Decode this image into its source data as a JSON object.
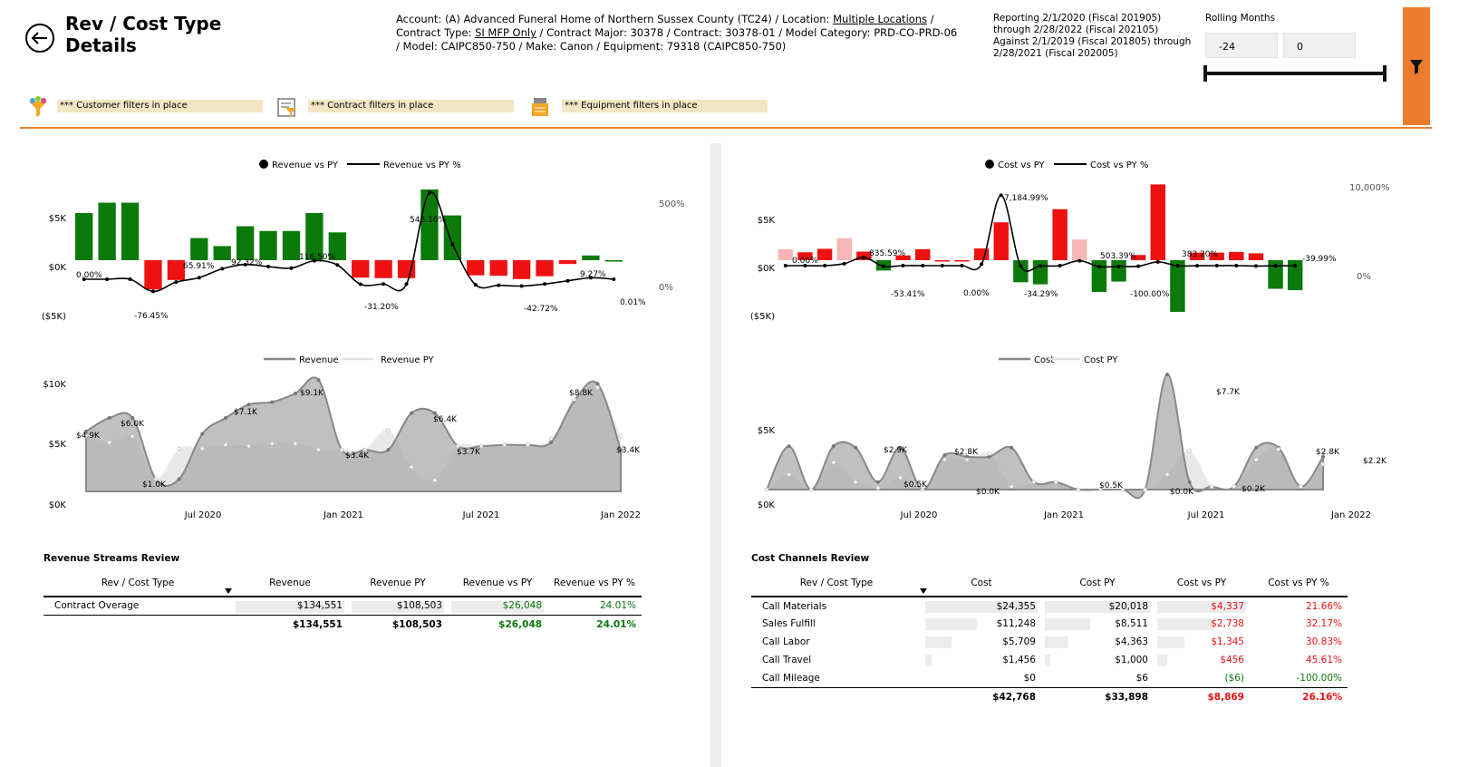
{
  "header": {
    "title_line1": "Rev / Cost Type",
    "title_line2": "Details",
    "context": {
      "account_prefix": "Account: (A) Advanced Funeral Home of Northern Sussex County (TC24) / Location: ",
      "location": "Multiple Locations",
      "line1_suffix": " /",
      "contract_type_prefix": "Contract Type: ",
      "contract_type": "SI MFP Only",
      "line2_rest": " /  Contract Major:  30378  /  Contract: 30378-01 / Model Category: PRD-CO-PRD-06",
      "line3": "/  Model: CAIPC850-750 / Make: Canon  / Equipment:  79318 (CAIPC850-750)"
    },
    "reporting": {
      "line1": "Reporting 2/1/2020 (Fiscal 201905)",
      "line2": "through 2/28/2022 (Fiscal 202105)",
      "line3": "Against 2/1/2019 (Fiscal 201805) through",
      "line4": "2/28/2021 (Fiscal 202005)"
    },
    "rolling_months": {
      "label": "Rolling Months",
      "start": "-24",
      "end": "0"
    }
  },
  "filters": {
    "customer": "*** Customer filters in place",
    "contract": "*** Contract filters in place",
    "equipment": "*** Equipment filters in place"
  },
  "colors": {
    "accent": "#ec7c2c",
    "positive": "#0b7a0b",
    "negative": "#ee1111",
    "neg_light": "#f6b6b6",
    "area_current": "#b5b5b5",
    "area_py": "#e6e6e6"
  },
  "charts": {
    "revenue_vs_py": {
      "legend": [
        "Revenue vs PY",
        "Revenue vs PY %"
      ],
      "y_ticks": [
        "$5K",
        "$0K",
        "($5K)"
      ],
      "y2_ticks": [
        "500%",
        "0%"
      ],
      "pct_labels": [
        "0.00%",
        "-76.45%",
        "65.91%",
        "92.32%",
        "116.50%",
        "-31.20%",
        "546.16%",
        "-42.72%",
        "9.27%",
        "0.01%"
      ]
    },
    "revenue": {
      "legend": [
        "Revenue",
        "Revenue PY"
      ],
      "y_ticks": [
        "$10K",
        "$5K",
        "$0K"
      ],
      "x_ticks": [
        "Jul 2020",
        "Jan 2021",
        "Jul 2021",
        "Jan 2022"
      ],
      "value_labels": [
        "$4.9K",
        "$6.0K",
        "$1.0K",
        "$7.1K",
        "$9.1K",
        "$3.4K",
        "$6.4K",
        "$3.7K",
        "$8.8K",
        "$3.4K"
      ]
    },
    "cost_vs_py": {
      "legend": [
        "Cost vs PY",
        "Cost vs PY %"
      ],
      "y_ticks": [
        "$5K",
        "$0K",
        "($5K)"
      ],
      "y2_ticks": [
        "10,000%",
        "0%"
      ],
      "pct_labels": [
        "7,184.99%",
        "0.00%",
        "835.59%",
        "-53.41%",
        "0.00%",
        "-34.29%",
        "503.39%",
        "-100.00%",
        "383.20%",
        "-39.99%"
      ]
    },
    "cost": {
      "legend": [
        "Cost",
        "Cost PY"
      ],
      "y_ticks": [
        "$5K",
        "$0K"
      ],
      "x_ticks": [
        "Jul 2020",
        "Jan 2021",
        "Jul 2021",
        "Jan 2022"
      ],
      "value_labels": [
        "$2.9K",
        "$2.8K",
        "$0.5K",
        "$0.0K",
        "$0.5K",
        "$7.7K",
        "$0.0K",
        "$0.2K",
        "$2.8K",
        "$2.2K"
      ]
    }
  },
  "chart_data": [
    {
      "type": "bar",
      "title": "",
      "series": [
        {
          "name": "Revenue vs PY",
          "values": [
            1000,
            1220,
            1220,
            -620,
            -420,
            470,
            300,
            720,
            620,
            620,
            1000,
            590,
            -370,
            -380,
            -380,
            1500,
            950,
            -320,
            -330,
            -400,
            -340,
            -80,
            100,
            0
          ]
        },
        {
          "name": "Revenue vs PY %",
          "values": [
            0.0,
            0.0,
            0.0,
            -76.45,
            -18,
            10,
            65.91,
            92.32,
            80,
            70,
            116.5,
            90,
            -31.2,
            -30,
            -30,
            546.16,
            220,
            -35,
            -38,
            -42.72,
            -30,
            -10,
            9.27,
            0.01
          ]
        }
      ],
      "ylabel": "",
      "ylim": [
        -5000,
        5000
      ]
    },
    {
      "type": "area",
      "title": "",
      "x_ticks": [
        "Jul 2020",
        "Jan 2021",
        "Jul 2021",
        "Jan 2022"
      ],
      "series": [
        {
          "name": "Revenue",
          "values": [
            4900,
            6000,
            6000,
            1000,
            1000,
            4700,
            6000,
            7100,
            7300,
            8000,
            9100,
            3400,
            3400,
            3400,
            6400,
            6400,
            3700,
            3700,
            3800,
            3800,
            4000,
            7400,
            8800,
            3400
          ]
        },
        {
          "name": "Revenue PY",
          "values": [
            4500,
            4000,
            4500,
            1000,
            3500,
            3500,
            3800,
            3700,
            3900,
            3900,
            3400,
            3400,
            3400,
            5000,
            2000,
            900,
            3700,
            3700,
            3800,
            3800,
            4300,
            7500,
            8500,
            4500
          ]
        }
      ],
      "ylim": [
        0,
        10000
      ]
    },
    {
      "type": "bar",
      "title": "",
      "series": [
        {
          "name": "Cost vs PY",
          "values": [
            320,
            230,
            330,
            640,
            250,
            -300,
            140,
            320,
            0,
            0,
            340,
            1100,
            -640,
            -700,
            1480,
            600,
            -920,
            -620,
            150,
            2200,
            -1500,
            220,
            220,
            240,
            200,
            -830,
            -870
          ]
        },
        {
          "name": "Cost vs PY %",
          "values": [
            0.0,
            0.0,
            0.0,
            200,
            835.59,
            -53.41,
            0.0,
            0.0,
            0.0,
            0.0,
            150,
            7184.99,
            -34.29,
            -30,
            0,
            503.39,
            -100.0,
            -80,
            -60,
            383.2,
            -20,
            -10,
            0,
            0,
            -39.99,
            -20,
            -10
          ]
        }
      ],
      "ylim": [
        -5000,
        5000
      ],
      "y2lim": [
        0,
        10000
      ]
    },
    {
      "type": "area",
      "title": "",
      "x_ticks": [
        "Jul 2020",
        "Jan 2021",
        "Jul 2021",
        "Jan 2022"
      ],
      "series": [
        {
          "name": "Cost",
          "values": [
            0,
            2900,
            0,
            2900,
            2800,
            500,
            2800,
            0,
            2300,
            2200,
            2200,
            2800,
            500,
            500,
            0,
            0,
            0,
            0,
            7700,
            500,
            200,
            200,
            2800,
            2800,
            200,
            2200
          ]
        },
        {
          "name": "Cost PY",
          "values": [
            0,
            1000,
            0,
            1800,
            500,
            100,
            800,
            0,
            2000,
            2000,
            2400,
            200,
            500,
            500,
            0,
            0,
            0,
            0,
            1000,
            2600,
            200,
            200,
            2000,
            2700,
            200,
            1700
          ]
        }
      ],
      "ylim": [
        0,
        9000
      ]
    }
  ],
  "revenue_table": {
    "title": "Revenue Streams Review",
    "columns": [
      "Rev / Cost Type",
      "Revenue",
      "Revenue PY",
      "Revenue vs PY",
      "Revenue vs PY %"
    ],
    "rows": [
      {
        "type": "Contract Overage",
        "value": "$134,551",
        "py": "$108,503",
        "vs": "$26,048",
        "pct": "24.01%",
        "sign": "pos",
        "bar": 1.0,
        "bar_py": 1.0,
        "bar_vs": 1.0
      }
    ],
    "total": {
      "value": "$134,551",
      "py": "$108,503",
      "vs": "$26,048",
      "pct": "24.01%",
      "sign": "pos"
    }
  },
  "cost_table": {
    "title": "Cost Channels Review",
    "columns": [
      "Rev / Cost Type",
      "Cost",
      "Cost PY",
      "Cost vs PY",
      "Cost vs PY %"
    ],
    "rows": [
      {
        "type": "Call Materials",
        "value": "$24,355",
        "py": "$20,018",
        "vs": "$4,337",
        "pct": "21.66%",
        "sign": "neg",
        "bar": 1.0,
        "bar_py": 1.0,
        "bar_vs": 1.0
      },
      {
        "type": "Sales Fulfill",
        "value": "$11,248",
        "py": "$8,511",
        "vs": "$2,738",
        "pct": "32.17%",
        "sign": "neg",
        "bar": 0.46,
        "bar_py": 0.43,
        "bar_vs": 0.63
      },
      {
        "type": "Call Labor",
        "value": "$5,709",
        "py": "$4,363",
        "vs": "$1,345",
        "pct": "30.83%",
        "sign": "neg",
        "bar": 0.23,
        "bar_py": 0.22,
        "bar_vs": 0.31
      },
      {
        "type": "Call Travel",
        "value": "$1,456",
        "py": "$1,000",
        "vs": "$456",
        "pct": "45.61%",
        "sign": "neg",
        "bar": 0.06,
        "bar_py": 0.05,
        "bar_vs": 0.11
      },
      {
        "type": "Call Mileage",
        "value": "$0",
        "py": "$6",
        "vs": "($6)",
        "pct": "-100.00%",
        "sign": "pos",
        "bar": 0.0,
        "bar_py": 0.0,
        "bar_vs": 0.0
      }
    ],
    "total": {
      "value": "$42,768",
      "py": "$33,898",
      "vs": "$8,869",
      "pct": "26.16%",
      "sign": "neg"
    }
  }
}
